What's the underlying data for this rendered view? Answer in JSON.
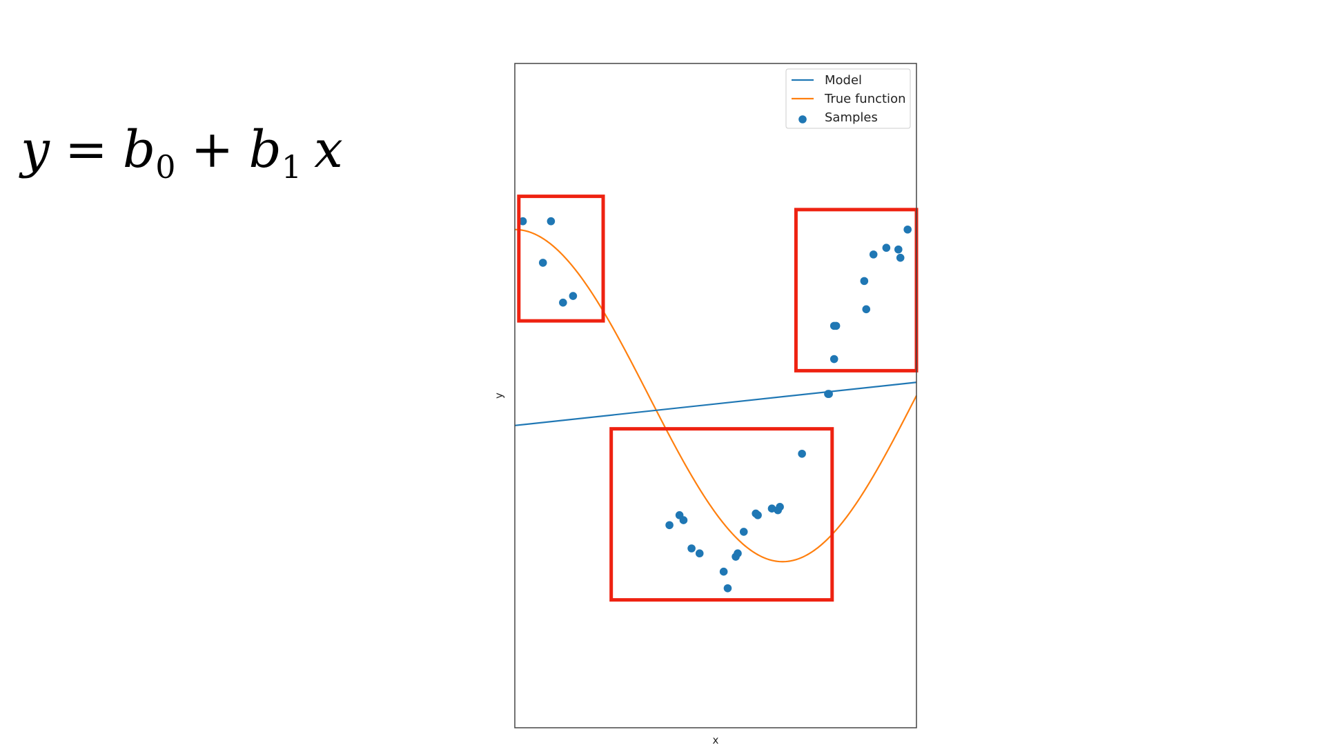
{
  "equation": {
    "y": "y",
    "equals": "=",
    "b0": "b",
    "sub0": "0",
    "plus": "+",
    "b1": "b",
    "sub1": "1",
    "x": "x"
  },
  "chart_data": {
    "type": "scatter",
    "title": "",
    "xlabel": "x",
    "ylabel": "y",
    "xlim": [
      0,
      1
    ],
    "ylim": [
      -2,
      2
    ],
    "xticks": [],
    "yticks": [],
    "grid": false,
    "legend": {
      "placement": "top-right",
      "entries": [
        {
          "label": "Model",
          "kind": "line",
          "color": "#1f77b4"
        },
        {
          "label": "True function",
          "kind": "line",
          "color": "#ff7f0e"
        },
        {
          "label": "Samples",
          "kind": "marker",
          "color": "#1f77b4"
        }
      ]
    },
    "series": [
      {
        "name": "Model",
        "kind": "line",
        "color": "#1f77b4",
        "x": [
          0,
          1
        ],
        "y": [
          -0.18,
          0.08
        ]
      },
      {
        "name": "True function",
        "kind": "line",
        "color": "#ff7f0e",
        "function": "cos(1.5*pi*x)"
      },
      {
        "name": "Samples",
        "kind": "scatter",
        "color": "#1f77b4",
        "x": [
          0.02,
          0.09,
          0.07,
          0.12,
          0.145,
          0.385,
          0.41,
          0.42,
          0.44,
          0.46,
          0.52,
          0.53,
          0.55,
          0.555,
          0.57,
          0.6,
          0.605,
          0.64,
          0.655,
          0.66,
          0.715,
          0.78,
          0.782,
          0.795,
          0.795,
          0.8,
          0.875,
          0.87,
          0.893,
          0.925,
          0.955,
          0.96,
          0.978
        ],
        "y": [
          1.05,
          1.05,
          0.8,
          0.56,
          0.6,
          -0.78,
          -0.72,
          -0.75,
          -0.92,
          -0.95,
          -1.06,
          -1.16,
          -0.97,
          -0.95,
          -0.82,
          -0.71,
          -0.72,
          -0.68,
          -0.69,
          -0.67,
          -0.35,
          0.01,
          0.01,
          0.22,
          0.42,
          0.42,
          0.52,
          0.69,
          0.85,
          0.89,
          0.88,
          0.83,
          1.0
        ]
      }
    ],
    "highlight_boxes": [
      {
        "x": [
          0.01,
          0.22
        ],
        "y": [
          0.45,
          1.2
        ]
      },
      {
        "x": [
          0.24,
          0.79
        ],
        "y": [
          -1.23,
          -0.2
        ]
      },
      {
        "x": [
          0.7,
          1.0
        ],
        "y": [
          0.15,
          1.12
        ]
      }
    ],
    "highlight_color": "#ee2211"
  }
}
